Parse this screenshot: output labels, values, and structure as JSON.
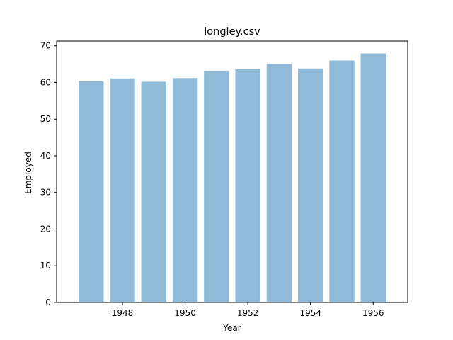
{
  "chart_data": {
    "type": "bar",
    "title": "longley.csv",
    "xlabel": "Year",
    "ylabel": "Employed",
    "x": [
      1947,
      1948,
      1949,
      1950,
      1951,
      1952,
      1953,
      1954,
      1955,
      1956
    ],
    "values": [
      60.3,
      61.1,
      60.2,
      61.2,
      63.2,
      63.6,
      65.0,
      63.8,
      66.0,
      67.9
    ],
    "xlim": [
      1945.9,
      1957.1
    ],
    "ylim": [
      0,
      71.3
    ],
    "xticks": [
      1948,
      1950,
      1952,
      1954,
      1956
    ],
    "xtick_labels": [
      "1948",
      "1950",
      "1952",
      "1954",
      "1956"
    ],
    "yticks": [
      0,
      10,
      20,
      30,
      40,
      50,
      60,
      70
    ],
    "ytick_labels": [
      "0",
      "10",
      "20",
      "30",
      "40",
      "50",
      "60",
      "70"
    ],
    "bar_color": "#1f77b4",
    "bar_opacity": 0.5,
    "grid": false,
    "legend": "none"
  }
}
